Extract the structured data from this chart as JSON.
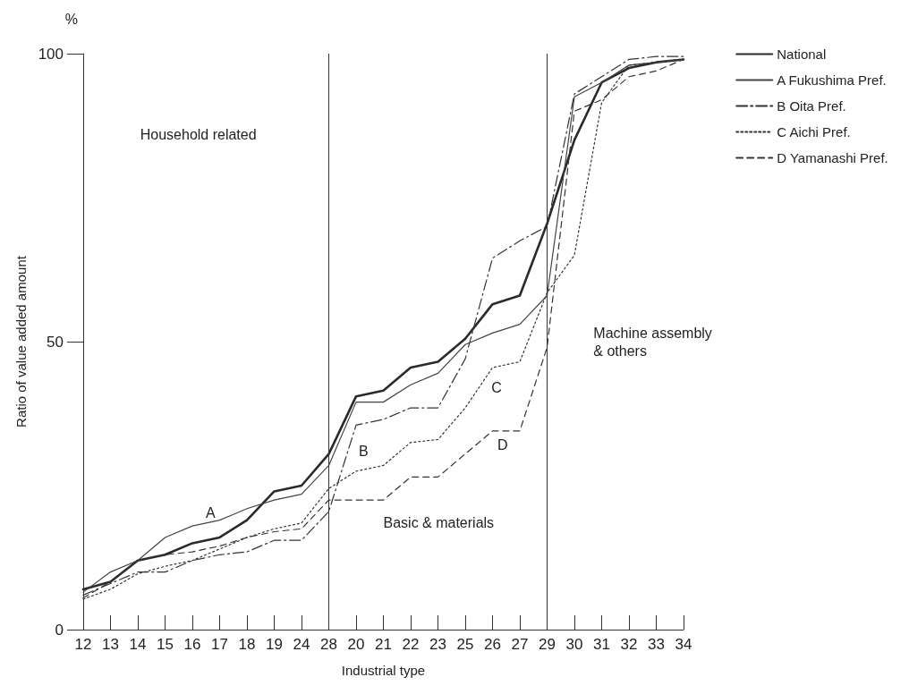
{
  "chart_data": {
    "type": "line",
    "xlabel": "Industrial type",
    "ylabel": "Ratio of value added amount",
    "categories": [
      "12",
      "13",
      "14",
      "15",
      "16",
      "17",
      "18",
      "19",
      "24",
      "28",
      "20",
      "21",
      "22",
      "23",
      "25",
      "26",
      "27",
      "29",
      "30",
      "31",
      "32",
      "33",
      "34"
    ],
    "ylim": [
      0,
      100
    ],
    "yticks": [
      0,
      50,
      100
    ],
    "grid": false,
    "legend": "top right",
    "marker": "none",
    "series": [
      {
        "name": "National",
        "color": "#2a2a2a",
        "line_style": "solid",
        "values": [
          7,
          8.3,
          12,
          13,
          15,
          16,
          19,
          24,
          25,
          30.5,
          40.5,
          41.5,
          45.5,
          46.5,
          50.5,
          56.5,
          58,
          70.5,
          85,
          95,
          97.5,
          98.5,
          99
        ]
      },
      {
        "name": "A Fukushima Pref.",
        "color": "#444444",
        "line_style": "solid",
        "values": [
          6.5,
          10,
          12,
          16,
          18,
          19,
          21,
          22.5,
          23.5,
          28.5,
          39.5,
          39.5,
          42.5,
          44.5,
          49.5,
          51.5,
          53,
          58,
          92.5,
          95,
          98,
          98.5,
          99
        ]
      },
      {
        "name": "B Oita Pref.",
        "color": "#333333",
        "line_style": "dashdot",
        "values": [
          6,
          8,
          10,
          10,
          12,
          13,
          13.5,
          15.5,
          15.5,
          20.5,
          35.5,
          36.5,
          38.5,
          38.5,
          47,
          64.5,
          67.5,
          70,
          93,
          96,
          99,
          99.5,
          99.5
        ]
      },
      {
        "name": "C Aichi Pref.",
        "color": "#333333",
        "line_style": "dotted",
        "values": [
          5.3,
          7,
          9.7,
          11,
          12,
          14,
          16,
          17.5,
          18.5,
          24.5,
          27.5,
          28.5,
          32.5,
          33,
          38.5,
          45.5,
          46.5,
          58.5,
          65,
          91.5,
          98,
          98.5,
          99
        ]
      },
      {
        "name": "D Yamanashi Pref.",
        "color": "#333333",
        "line_style": "dashed",
        "values": [
          5.5,
          8.3,
          12,
          13,
          13.5,
          14.5,
          16,
          17,
          17.5,
          22.5,
          22.5,
          22.5,
          26.5,
          26.5,
          30.5,
          34.5,
          34.5,
          49,
          90,
          92,
          96,
          97,
          99
        ]
      }
    ],
    "ref_lines": [
      {
        "axis": "x",
        "value": "28",
        "label": null,
        "color": "#333333"
      },
      {
        "axis": "x",
        "value": "29",
        "label": null,
        "color": "#333333"
      }
    ],
    "annotations": [
      "%",
      "Household related",
      "Basic & materials",
      "Machine assembly\n& others",
      "A",
      "B",
      "C",
      "D"
    ]
  }
}
